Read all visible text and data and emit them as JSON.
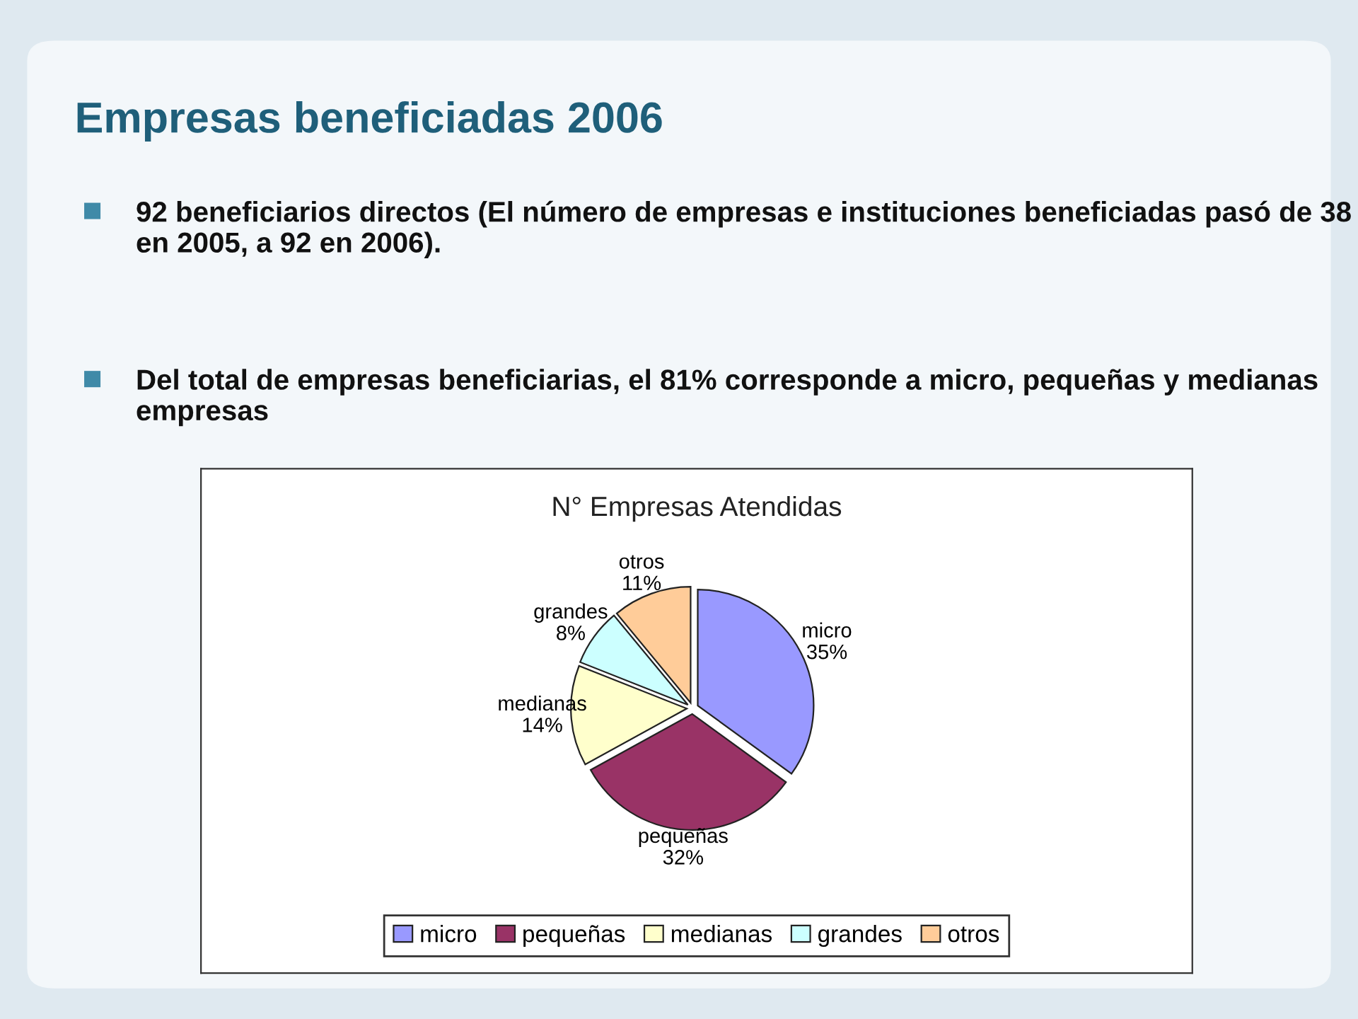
{
  "chart_data": {
    "type": "pie",
    "title": "Empresas beneficiadas 2006",
    "subtitle": "N° Empresas Atendidas",
    "annotations": [
      "92 beneficiarios directos (El número de empresas e instituciones beneficiadas pasó de 38 en 2005, a 92 en 2006).",
      "Del total de empresas beneficiarias, el 81% corresponde a micro, pequeñas y medianas empresas"
    ],
    "categories": [
      "micro",
      "pequeñas",
      "medianas",
      "grandes",
      "otros"
    ],
    "values": [
      35,
      32,
      14,
      8,
      11
    ],
    "colors": [
      "#9999ff",
      "#993366",
      "#ffffcc",
      "#ccffff",
      "#ffcc99"
    ],
    "value_labels": [
      "35%",
      "32%",
      "14%",
      "8%",
      "11%"
    ],
    "legend": "bottom"
  }
}
